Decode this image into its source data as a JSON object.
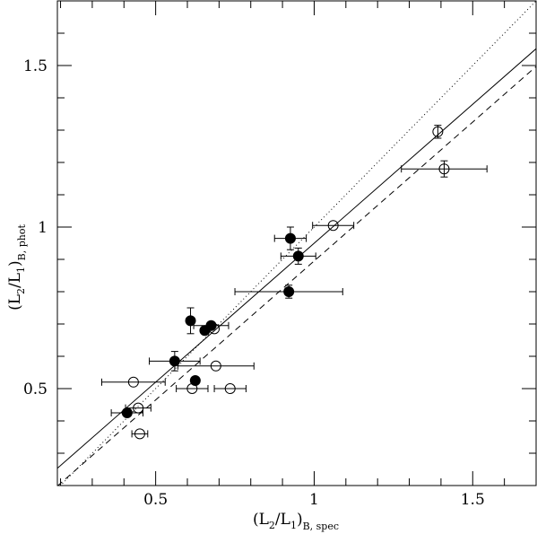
{
  "chart_data": {
    "type": "scatter",
    "xlabel": {
      "main": "(L",
      "sub1": "2",
      "mid": "/L",
      "sub2": "1",
      "close": ")",
      "subscript": "B, spec"
    },
    "ylabel": {
      "main": "(L",
      "sub1": "2",
      "mid": "/L",
      "sub2": "1",
      "close": ")",
      "subscript": "B, phot"
    },
    "xlim": [
      0.19,
      1.7
    ],
    "ylim": [
      0.2,
      1.7
    ],
    "xticks": [
      {
        "value": 0.5,
        "label": "0.5"
      },
      {
        "value": 1,
        "label": "1"
      },
      {
        "value": 1.5,
        "label": "1.5"
      }
    ],
    "yticks": [
      {
        "value": 0.5,
        "label": "0.5"
      },
      {
        "value": 1,
        "label": "1"
      },
      {
        "value": 1.5,
        "label": "1.5"
      }
    ],
    "series": [
      {
        "marker": "filled-circle",
        "points": [
          {
            "x": 0.41,
            "y": 0.425,
            "xerr": 0.05,
            "yerr": 0.0
          },
          {
            "x": 0.56,
            "y": 0.585,
            "xerr": 0.08,
            "yerr": 0.03
          },
          {
            "x": 0.61,
            "y": 0.71,
            "xerr": 0.0,
            "yerr": 0.04
          },
          {
            "x": 0.625,
            "y": 0.525,
            "xerr": 0.0,
            "yerr": 0.0
          },
          {
            "x": 0.655,
            "y": 0.68,
            "xerr": 0.0,
            "yerr": 0.0
          },
          {
            "x": 0.675,
            "y": 0.695,
            "xerr": 0.055,
            "yerr": 0.0
          },
          {
            "x": 0.92,
            "y": 0.8,
            "xerr": 0.17,
            "yerr": 0.02
          },
          {
            "x": 0.925,
            "y": 0.965,
            "xerr": 0.05,
            "yerr": 0.035
          },
          {
            "x": 0.95,
            "y": 0.91,
            "xerr": 0.055,
            "yerr": 0.025
          }
        ]
      },
      {
        "marker": "open-circle",
        "points": [
          {
            "x": 0.43,
            "y": 0.52,
            "xerr": 0.1,
            "yerr": 0.0
          },
          {
            "x": 0.445,
            "y": 0.44,
            "xerr": 0.04,
            "yerr": 0.0
          },
          {
            "x": 0.45,
            "y": 0.36,
            "xerr": 0.025,
            "yerr": 0.0
          },
          {
            "x": 0.615,
            "y": 0.5,
            "xerr": 0.05,
            "yerr": 0.0
          },
          {
            "x": 0.685,
            "y": 0.685,
            "xerr": 0.0,
            "yerr": 0.0
          },
          {
            "x": 0.69,
            "y": 0.57,
            "xerr": 0.12,
            "yerr": 0.0
          },
          {
            "x": 0.735,
            "y": 0.5,
            "xerr": 0.05,
            "yerr": 0.0
          },
          {
            "x": 1.06,
            "y": 1.005,
            "xerr": 0.065,
            "yerr": 0.0
          },
          {
            "x": 1.39,
            "y": 1.295,
            "xerr": 0.0,
            "yerr": 0.02
          },
          {
            "x": 1.41,
            "y": 1.18,
            "xerr": 0.135,
            "yerr": 0.025
          }
        ]
      }
    ],
    "lines": [
      {
        "style": "solid",
        "slope": 0.86,
        "intercept": 0.09
      },
      {
        "style": "dotted",
        "slope": 1.0,
        "intercept": 0.0
      },
      {
        "style": "dashed",
        "slope": 0.86,
        "intercept": 0.035
      }
    ],
    "grid": false,
    "legend": "none"
  }
}
